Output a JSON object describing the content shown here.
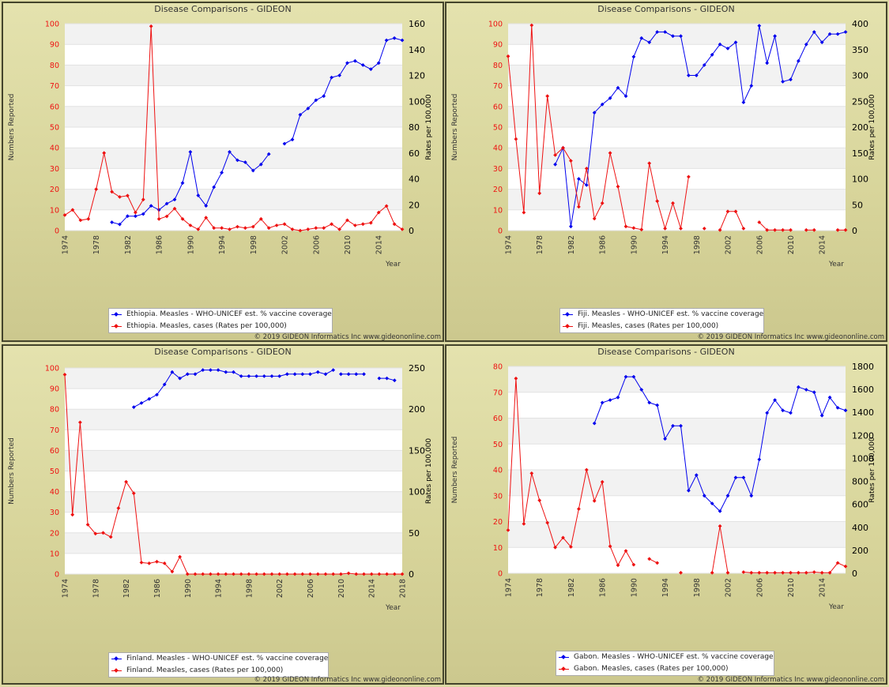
{
  "colors": {
    "blue": "#0000ee",
    "red": "#ee1111"
  },
  "panels": [
    {
      "title": "Disease Comparisons - GIDEON",
      "ylabel": "Numbers Reported",
      "y2label": "Rates per 100,000",
      "xlabel": "Year",
      "legend": [
        "Ethiopia. Measles - WHO-UNICEF est. % vaccine coverage",
        "Ethiopia. Measles, cases (Rates per 100,000)"
      ],
      "copyright": "© 2019 GIDEON Informatics Inc www.gideononline.com"
    },
    {
      "title": "Disease Comparisons - GIDEON",
      "ylabel": "Numbers Reported",
      "y2label": "Rates per 100,000",
      "xlabel": "Year",
      "legend": [
        "Fiji. Measles - WHO-UNICEF est. % vaccine coverage",
        "Fiji. Measles, cases (Rates per 100,000)"
      ],
      "copyright": "© 2019 GIDEON Informatics Inc www.gideononline.com"
    },
    {
      "title": "Disease Comparisons - GIDEON",
      "ylabel": "Numbers Reported",
      "y2label": "Rates per 100,000",
      "xlabel": "Year",
      "legend": [
        "Finland. Measles - WHO-UNICEF est. % vaccine coverage",
        "Finland. Measles, cases (Rates per 100,000)"
      ],
      "copyright": "© 2019 GIDEON Informatics Inc www.gideononline.com"
    },
    {
      "title": "Disease Comparisons - GIDEON",
      "ylabel": "Numbers Reported",
      "y2label": "Rates per 100,000",
      "xlabel": "Year",
      "legend": [
        "Gabon. Measles - WHO-UNICEF est. % vaccine coverage",
        "Gabon. Measles, cases (Rates per 100,000)"
      ],
      "copyright": "© 2019 GIDEON Informatics Inc www.gideononline.com"
    }
  ],
  "chart_data": [
    {
      "type": "line",
      "title": "Disease Comparisons - GIDEON",
      "xlabel": "Year",
      "ylabel": "Numbers Reported",
      "y2label": "Rates per 100,000",
      "xlim": [
        1974,
        2017
      ],
      "xticks": [
        1974,
        1978,
        1982,
        1986,
        1990,
        1994,
        1998,
        2002,
        2006,
        2010,
        2014
      ],
      "ylim": [
        0,
        100
      ],
      "yticks": [
        0,
        10,
        20,
        30,
        40,
        50,
        60,
        70,
        80,
        90,
        100
      ],
      "y2lim": [
        0,
        160
      ],
      "y2ticks": [
        0,
        20,
        40,
        60,
        80,
        100,
        120,
        140,
        160
      ],
      "series": [
        {
          "name": "Ethiopia. Measles - WHO-UNICEF est. % vaccine coverage",
          "axis": "left",
          "color": "#0000ee",
          "x": [
            1980,
            1981,
            1982,
            1983,
            1984,
            1985,
            1986,
            1987,
            1988,
            1989,
            1990,
            1991,
            1992,
            1993,
            1994,
            1995,
            1996,
            1997,
            1998,
            1999,
            2000,
            null,
            2002,
            2003,
            2004,
            2005,
            2006,
            2007,
            2008,
            2009,
            2010,
            2011,
            2012,
            2013,
            2014,
            2015,
            2016,
            2017
          ],
          "y": [
            4,
            3,
            7,
            7,
            8,
            12,
            10,
            13,
            15,
            23,
            38,
            17,
            12,
            21,
            28,
            38,
            34,
            33,
            29,
            32,
            37,
            null,
            42,
            44,
            56,
            59,
            63,
            65,
            74,
            75,
            81,
            82,
            80,
            78,
            81,
            92,
            93,
            92
          ]
        },
        {
          "name": "Ethiopia. Measles, cases (Rates per 100,000)",
          "axis": "right",
          "color": "#ee1111",
          "x": [
            1974,
            1975,
            1976,
            1977,
            1978,
            1979,
            1980,
            1981,
            1982,
            1983,
            1984,
            1985,
            1986,
            1987,
            1988,
            1989,
            1990,
            1991,
            1992,
            1993,
            1994,
            1995,
            1996,
            1997,
            1998,
            1999,
            2000,
            2001,
            2002,
            2003,
            2004,
            2005,
            2006,
            2007,
            2008,
            2009,
            2010,
            2011,
            2012,
            2013,
            2014,
            2015,
            2016,
            2017
          ],
          "y": [
            12,
            16,
            8,
            9,
            32,
            60,
            30,
            26,
            27,
            14,
            24,
            158,
            9,
            11,
            17,
            9,
            4,
            1,
            10,
            2,
            2,
            1,
            3,
            2,
            3,
            9,
            2,
            4,
            5,
            1,
            0,
            1,
            2,
            2,
            5,
            1,
            8,
            4,
            5,
            6,
            14,
            19,
            5,
            1
          ]
        }
      ]
    },
    {
      "type": "line",
      "title": "Disease Comparisons - GIDEON",
      "xlabel": "Year",
      "ylabel": "Numbers Reported",
      "y2label": "Rates per 100,000",
      "xlim": [
        1974,
        2017
      ],
      "xticks": [
        1974,
        1978,
        1982,
        1986,
        1990,
        1994,
        1998,
        2002,
        2006,
        2010,
        2014
      ],
      "ylim": [
        0,
        100
      ],
      "yticks": [
        0,
        10,
        20,
        30,
        40,
        50,
        60,
        70,
        80,
        90,
        100
      ],
      "y2lim": [
        0,
        400
      ],
      "y2ticks": [
        0,
        50,
        100,
        150,
        200,
        250,
        300,
        350,
        400
      ],
      "series": [
        {
          "name": "Fiji. Measles - WHO-UNICEF est. % vaccine coverage",
          "axis": "left",
          "color": "#0000ee",
          "x": [
            1980,
            1981,
            1982,
            1983,
            1984,
            1985,
            1986,
            1987,
            1988,
            1989,
            1990,
            1991,
            1992,
            1993,
            1994,
            1995,
            1996,
            1997,
            1998,
            1999,
            2000,
            2001,
            2002,
            2003,
            2004,
            2005,
            2006,
            2007,
            2008,
            2009,
            2010,
            2011,
            2012,
            2013,
            2014,
            2015,
            2016,
            2017
          ],
          "y": [
            32,
            40,
            2,
            25,
            22,
            57,
            61,
            64,
            69,
            65,
            84,
            93,
            91,
            96,
            96,
            94,
            94,
            75,
            75,
            80,
            85,
            90,
            88,
            91,
            62,
            70,
            99,
            81,
            94,
            72,
            73,
            82,
            90,
            96,
            91,
            95,
            95,
            96
          ]
        },
        {
          "name": "Fiji. Measles, cases (Rates per 100,000)",
          "axis": "right",
          "color": "#ee1111",
          "x": [
            1974,
            1975,
            1976,
            1977,
            1978,
            1979,
            1980,
            1981,
            1982,
            1983,
            1984,
            1985,
            1986,
            1987,
            1988,
            1989,
            1990,
            1991,
            1992,
            1993,
            1994,
            1995,
            1996,
            1997,
            null,
            1999,
            null,
            2001,
            2002,
            2003,
            2004,
            null,
            2006,
            2007,
            2008,
            2009,
            2010,
            null,
            2012,
            2013,
            null,
            2016,
            2017
          ],
          "y": [
            337,
            177,
            35,
            397,
            72,
            260,
            146,
            160,
            135,
            46,
            120,
            23,
            53,
            150,
            85,
            8,
            5,
            2,
            130,
            57,
            4,
            53,
            4,
            104,
            null,
            4,
            null,
            1,
            37,
            37,
            4,
            null,
            16,
            1,
            1,
            1,
            1,
            null,
            1,
            1,
            null,
            1,
            1
          ]
        }
      ]
    },
    {
      "type": "line",
      "title": "Disease Comparisons - GIDEON",
      "xlabel": "Year",
      "ylabel": "Numbers Reported",
      "y2label": "Rates per 100,000",
      "xlim": [
        1974,
        2018
      ],
      "xticks": [
        1974,
        1978,
        1982,
        1986,
        1990,
        1994,
        1998,
        2002,
        2006,
        2010,
        2014,
        2018
      ],
      "ylim": [
        0,
        100
      ],
      "yticks": [
        0,
        10,
        20,
        30,
        40,
        50,
        60,
        70,
        80,
        90,
        100
      ],
      "y2lim": [
        0,
        250
      ],
      "y2ticks": [
        0,
        50,
        100,
        150,
        200,
        250
      ],
      "series": [
        {
          "name": "Finland. Measles - WHO-UNICEF est. % vaccine coverage",
          "axis": "left",
          "color": "#0000ee",
          "x": [
            1983,
            1984,
            1985,
            1986,
            1987,
            1988,
            1989,
            1990,
            1991,
            1992,
            1993,
            1994,
            1995,
            1996,
            1997,
            1998,
            1999,
            2000,
            2001,
            2002,
            2003,
            2004,
            2005,
            2006,
            2007,
            2008,
            2009,
            null,
            2010,
            2011,
            2012,
            2013,
            null,
            2015,
            2016,
            2017
          ],
          "y": [
            81,
            83,
            85,
            87,
            92,
            98,
            95,
            97,
            97,
            99,
            99,
            99,
            98,
            98,
            96,
            96,
            96,
            96,
            96,
            96,
            97,
            97,
            97,
            97,
            98,
            97,
            99,
            null,
            97,
            97,
            97,
            97,
            null,
            95,
            95,
            94
          ]
        },
        {
          "name": "Finland. Measles, cases (Rates per 100,000)",
          "axis": "right",
          "color": "#ee1111",
          "x": [
            1974,
            1975,
            1976,
            1977,
            1978,
            1979,
            1980,
            1981,
            1982,
            1983,
            1984,
            1985,
            1986,
            1987,
            1988,
            1989,
            1990,
            1991,
            1992,
            1993,
            1994,
            1995,
            1996,
            1997,
            1998,
            1999,
            2000,
            2001,
            2002,
            2003,
            2004,
            2005,
            2006,
            2007,
            2008,
            2009,
            2010,
            2011,
            2012,
            2013,
            2014,
            2015,
            2016,
            2017,
            2018
          ],
          "y": [
            242,
            72,
            184,
            60,
            49,
            50,
            45,
            80,
            112,
            98,
            14,
            13,
            15,
            13,
            3,
            21,
            0,
            0,
            0,
            0,
            0,
            0,
            0,
            0,
            0,
            0,
            0,
            0,
            0,
            0,
            0,
            0,
            0,
            0,
            0,
            0,
            0,
            1,
            0,
            0,
            0,
            0,
            0,
            0,
            0
          ]
        }
      ]
    },
    {
      "type": "line",
      "title": "Disease Comparisons - GIDEON",
      "xlabel": "Year",
      "ylabel": "Numbers Reported",
      "y2label": "Rates per 100,000",
      "xlim": [
        1974,
        2017
      ],
      "xticks": [
        1974,
        1978,
        1982,
        1986,
        1990,
        1994,
        1998,
        2002,
        2006,
        2010,
        2014
      ],
      "ylim": [
        0,
        80
      ],
      "yticks": [
        0,
        10,
        20,
        30,
        40,
        50,
        60,
        70,
        80
      ],
      "y2lim": [
        0,
        1800
      ],
      "y2ticks": [
        0,
        200,
        400,
        600,
        800,
        1000,
        1200,
        1400,
        1600,
        1800
      ],
      "series": [
        {
          "name": "Gabon. Measles - WHO-UNICEF est. % vaccine coverage",
          "axis": "left",
          "color": "#0000ee",
          "x": [
            1985,
            1986,
            1987,
            1988,
            1989,
            1990,
            1991,
            1992,
            1993,
            1994,
            1995,
            1996,
            1997,
            1998,
            1999,
            2000,
            2001,
            2002,
            2003,
            2004,
            2005,
            2006,
            2007,
            2008,
            2009,
            2010,
            2011,
            2012,
            2013,
            2014,
            2015,
            2016,
            2017
          ],
          "y": [
            58,
            66,
            67,
            68,
            76,
            76,
            71,
            66,
            65,
            52,
            57,
            57,
            32,
            38,
            30,
            27,
            24,
            30,
            37,
            37,
            30,
            44,
            62,
            67,
            63,
            62,
            72,
            71,
            70,
            61,
            68,
            64,
            63
          ]
        },
        {
          "name": "Gabon. Measles, cases (Rates per 100,000)",
          "axis": "right",
          "color": "#ee1111",
          "x": [
            1974,
            1975,
            1976,
            1977,
            1978,
            1979,
            1980,
            1981,
            1982,
            1983,
            1984,
            1985,
            1986,
            1987,
            1988,
            1989,
            1990,
            null,
            1992,
            1993,
            null,
            1996,
            null,
            2000,
            2001,
            2002,
            null,
            2004,
            2005,
            2006,
            2007,
            2008,
            2009,
            2010,
            2011,
            2012,
            2013,
            2014,
            2015,
            2016,
            2017
          ],
          "y": [
            375,
            1695,
            430,
            870,
            635,
            440,
            225,
            310,
            230,
            560,
            900,
            630,
            795,
            235,
            70,
            195,
            75,
            null,
            125,
            90,
            null,
            5,
            null,
            5,
            410,
            5,
            null,
            10,
            5,
            5,
            5,
            5,
            5,
            5,
            5,
            5,
            10,
            5,
            5,
            90,
            60
          ]
        }
      ]
    }
  ]
}
